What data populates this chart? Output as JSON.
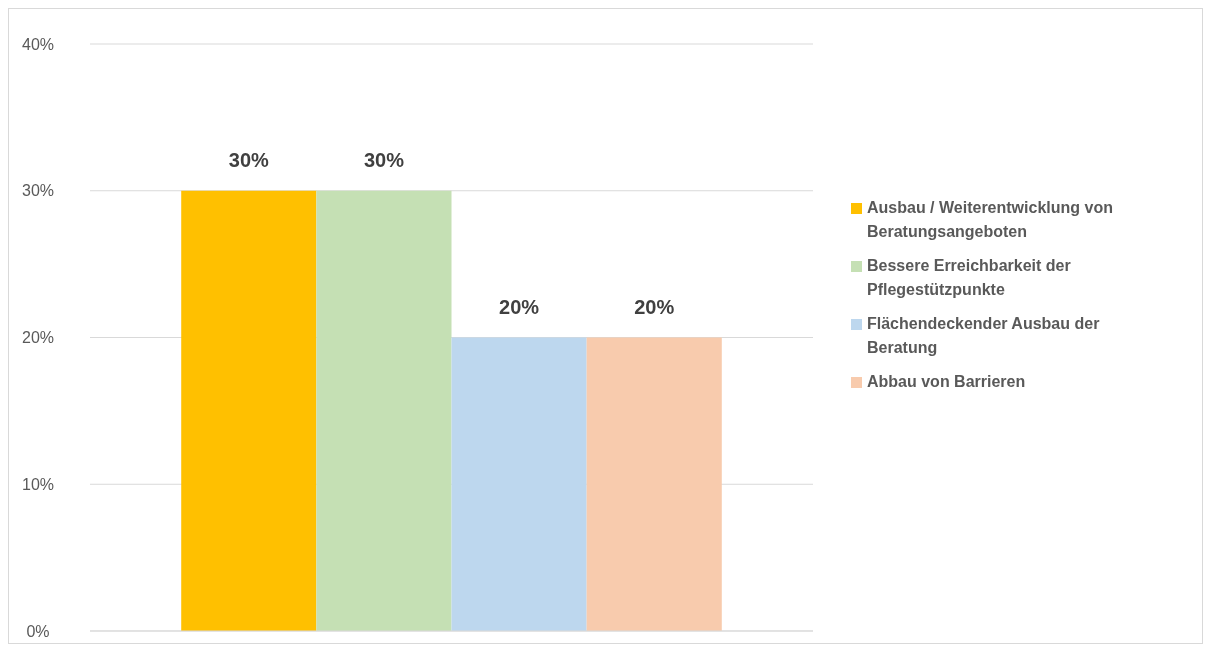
{
  "chart_data": {
    "type": "bar",
    "categories": [
      null
    ],
    "series": [
      {
        "name": "Ausbau / Weiterentwicklung von Beratungsangeboten",
        "color": "#ffc000",
        "values": [
          30
        ],
        "value_labels": [
          "30%"
        ]
      },
      {
        "name": "Bessere Erreichbarkeit der Pflegestützpunkte",
        "color": "#c5e0b4",
        "values": [
          30
        ],
        "value_labels": [
          "30%"
        ]
      },
      {
        "name": "Flächendeckender Ausbau der Beratung",
        "color": "#bdd7ee",
        "values": [
          20
        ],
        "value_labels": [
          "20%"
        ]
      },
      {
        "name": "Abbau von Barrieren",
        "color": "#f8cbad",
        "values": [
          20
        ],
        "value_labels": [
          "20%"
        ]
      }
    ],
    "ylim": [
      0,
      40
    ],
    "yticks": [
      {
        "value": 0,
        "label": "0%"
      },
      {
        "value": 10,
        "label": "10%"
      },
      {
        "value": 20,
        "label": "20%"
      },
      {
        "value": 30,
        "label": "30%"
      },
      {
        "value": 40,
        "label": "40%"
      }
    ],
    "grid": "y",
    "legend": "right"
  }
}
